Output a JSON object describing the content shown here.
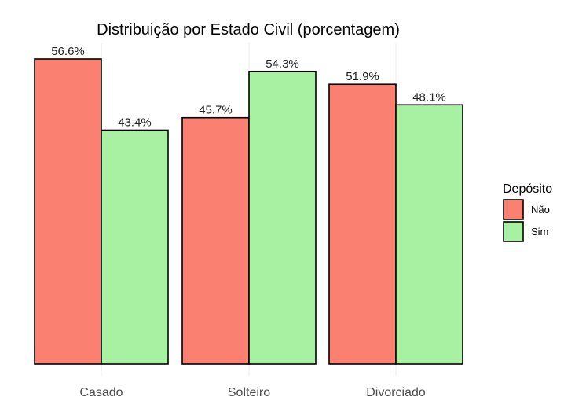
{
  "chart_data": {
    "type": "bar",
    "title": "Distribuição por Estado Civil (porcentagem)",
    "xlabel": "",
    "ylabel": "",
    "categories": [
      "Casado",
      "Solteiro",
      "Divorciado"
    ],
    "series": [
      {
        "name": "Não",
        "values": [
          56.6,
          45.7,
          51.9
        ],
        "color": "#FA8072",
        "labels": [
          "56.6%",
          "45.7%",
          "51.9%"
        ]
      },
      {
        "name": "Sim",
        "values": [
          43.4,
          54.3,
          48.1
        ],
        "color": "#A8F0A2",
        "labels": [
          "43.4%",
          "54.3%",
          "48.1%"
        ]
      }
    ],
    "ylim": [
      0,
      56.6
    ],
    "legend": {
      "title": "Depósito",
      "placement": "right"
    },
    "grid": {
      "vertical": true,
      "horizontal": false,
      "color": "#ebebeb"
    },
    "bar_outline": "#000000"
  }
}
